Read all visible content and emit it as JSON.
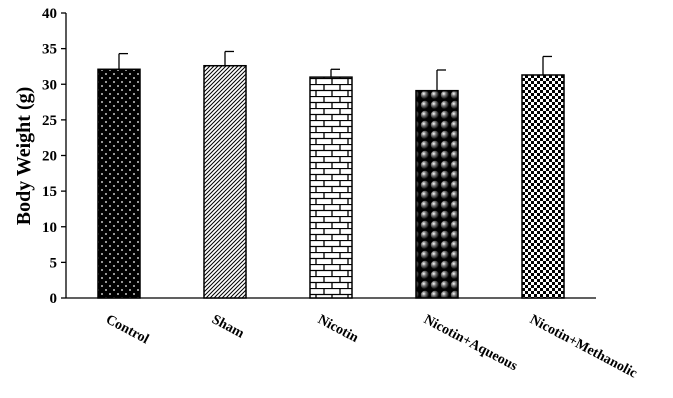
{
  "chart_data": {
    "type": "bar",
    "title": "",
    "xlabel": "",
    "ylabel": "Body Weight (g)",
    "ylim": [
      0,
      40
    ],
    "yticks": [
      0,
      5,
      10,
      15,
      20,
      25,
      30,
      35,
      40
    ],
    "grid": false,
    "legend": "none",
    "categories": [
      "Control",
      "Sham",
      "Nicotin",
      "Nicotin+Aqueous",
      "Nicotin+Methanolic"
    ],
    "values": [
      32.1,
      32.6,
      31.0,
      29.1,
      31.3
    ],
    "errors": [
      2.2,
      2.0,
      1.1,
      2.9,
      2.6
    ],
    "patterns": [
      "dotted-black",
      "diagonal-stripes",
      "brick",
      "spheres",
      "checkerboard"
    ]
  }
}
